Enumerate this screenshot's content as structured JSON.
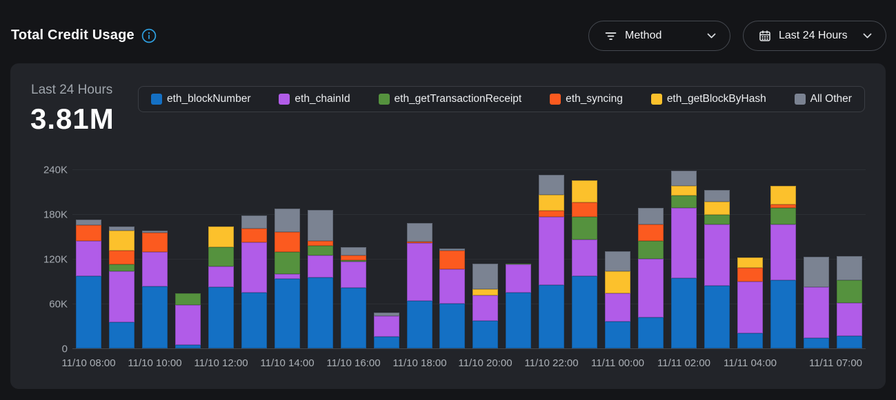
{
  "header": {
    "title": "Total Credit Usage",
    "method_filter_label": "Method",
    "time_filter_label": "Last 24 Hours"
  },
  "summary": {
    "period_label": "Last 24 Hours",
    "total": "3.81M"
  },
  "icons": {
    "info": "info-icon",
    "filter": "filter-icon",
    "calendar": "calendar-icon",
    "chevron": "chevron-down-icon"
  },
  "colors": {
    "page_bg": "#141518",
    "card_bg": "#222429",
    "accent_info_blue": "#2e9fe0",
    "grid_line": "#2c2f34",
    "axis_base_line": "#43464c",
    "text_primary": "#f2f3f5",
    "text_muted": "#9fa5ac",
    "pill_border": "#454950",
    "legend_border": "#3a3d43"
  },
  "chart_data": {
    "type": "bar",
    "stacked": true,
    "title": "Total Credit Usage",
    "subtitle": "Last 24 Hours",
    "total_label": "3.81M",
    "grid": "horizontal",
    "legend_position": "top",
    "ylim": [
      0,
      240000
    ],
    "y_ticks": [
      "0",
      "60K",
      "120K",
      "180K",
      "240K"
    ],
    "bar_count": 24,
    "x_ticks": [
      {
        "bar": 0,
        "label": "11/10 08:00"
      },
      {
        "bar": 2,
        "label": "11/10 10:00"
      },
      {
        "bar": 4,
        "label": "11/10 12:00"
      },
      {
        "bar": 6,
        "label": "11/10 14:00"
      },
      {
        "bar": 8,
        "label": "11/10 16:00"
      },
      {
        "bar": 10,
        "label": "11/10 18:00"
      },
      {
        "bar": 12,
        "label": "11/10 20:00"
      },
      {
        "bar": 14,
        "label": "11/10 22:00"
      },
      {
        "bar": 16,
        "label": "11/11 00:00"
      },
      {
        "bar": 18,
        "label": "11/11 02:00"
      },
      {
        "bar": 20,
        "label": "11/11 04:00"
      },
      {
        "bar": 23,
        "label": "11/11 07:00",
        "align": "right"
      }
    ],
    "series": [
      {
        "name": "eth_blockNumber",
        "color": "#1470c4",
        "values": [
          97000,
          35000,
          83000,
          5000,
          82000,
          75000,
          93000,
          95000,
          81000,
          16000,
          64000,
          60000,
          37000,
          75000,
          85000,
          97000,
          36000,
          42000,
          94000,
          84000,
          20000,
          91000,
          14000,
          17000
        ]
      },
      {
        "name": "eth_chainId",
        "color": "#b15ce8",
        "values": [
          47000,
          68000,
          46000,
          53000,
          28000,
          67000,
          7000,
          30000,
          35000,
          27000,
          77000,
          46000,
          34000,
          38000,
          91000,
          49000,
          38000,
          78000,
          94000,
          82000,
          70000,
          75000,
          68000,
          44000
        ]
      },
      {
        "name": "eth_getTransactionReceipt",
        "color": "#55923e",
        "values": [
          0,
          10000,
          0,
          16000,
          26000,
          0,
          29000,
          13000,
          2000,
          0,
          0,
          0,
          0,
          1000,
          0,
          30000,
          0,
          24000,
          17000,
          13000,
          0,
          22000,
          0,
          30000
        ]
      },
      {
        "name": "eth_syncing",
        "color": "#fc5a1f",
        "values": [
          21000,
          18000,
          26000,
          0,
          0,
          19000,
          27000,
          6000,
          7000,
          0,
          2000,
          25000,
          0,
          0,
          9000,
          20000,
          0,
          22000,
          0,
          0,
          18000,
          5000,
          0,
          0
        ]
      },
      {
        "name": "eth_getBlockByHash",
        "color": "#fcc12c",
        "values": [
          0,
          27000,
          0,
          0,
          27000,
          0,
          0,
          0,
          0,
          0,
          0,
          0,
          8000,
          0,
          21000,
          29000,
          29000,
          0,
          13000,
          18000,
          14000,
          25000,
          0,
          0
        ]
      },
      {
        "name": "All Other",
        "color": "#7b8392",
        "values": [
          8000,
          5000,
          3000,
          0,
          0,
          17000,
          31000,
          42000,
          11000,
          5000,
          25000,
          3000,
          35000,
          0,
          27000,
          0,
          27000,
          22000,
          20000,
          15000,
          0,
          0,
          41000,
          33000
        ]
      }
    ]
  }
}
